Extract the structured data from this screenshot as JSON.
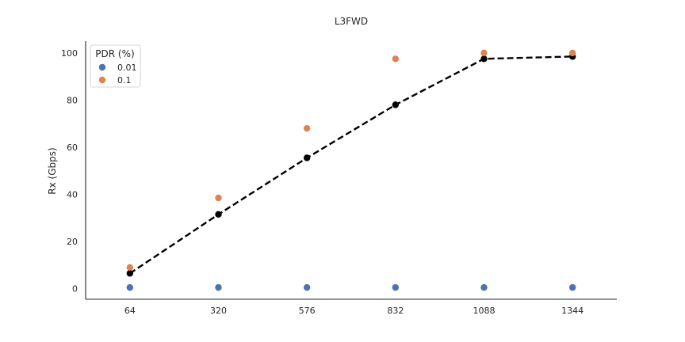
{
  "chart_data": {
    "type": "scatter",
    "title": "L3FWD",
    "xlabel": "",
    "ylabel": "Rx (Gbps)",
    "categories": [
      "64",
      "320",
      "576",
      "832",
      "1088",
      "1344"
    ],
    "ylim": [
      -4.5,
      105
    ],
    "yticks": [
      0,
      20,
      40,
      60,
      80,
      100
    ],
    "grid": false,
    "legend": {
      "title": "PDR (%)",
      "placement": "top-left"
    },
    "series": [
      {
        "name": "0.01",
        "color": "#4c72b0",
        "marker": "circle",
        "values": [
          0.5,
          0.5,
          0.5,
          0.5,
          0.5,
          0.5
        ]
      },
      {
        "name": "0.1",
        "color": "#dd8452",
        "marker": "circle",
        "values": [
          9,
          38.5,
          68,
          97.5,
          100,
          100
        ]
      }
    ],
    "fit_line": {
      "color": "#000000",
      "style": "dashed",
      "marker": "circle",
      "values": [
        6.5,
        31.5,
        55.5,
        78,
        97.5,
        98.5
      ]
    }
  }
}
